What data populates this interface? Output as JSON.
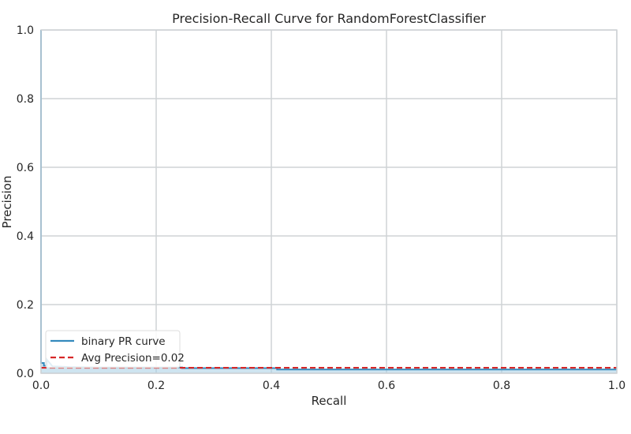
{
  "chart_data": {
    "type": "line",
    "title": "Precision-Recall Curve for RandomForestClassifier",
    "xlabel": "Recall",
    "ylabel": "Precision",
    "xlim": [
      0,
      1
    ],
    "ylim": [
      0,
      1
    ],
    "xticks": [
      "0.0",
      "0.2",
      "0.4",
      "0.6",
      "0.8",
      "1.0"
    ],
    "yticks": [
      "0.0",
      "0.2",
      "0.4",
      "0.6",
      "0.8",
      "1.0"
    ],
    "grid": true,
    "legend_position": "lower-left",
    "series": [
      {
        "name": "binary PR curve",
        "color": "#348abd",
        "fill": "#a6cee3",
        "x": [
          0.0,
          0.0,
          0.005,
          0.005,
          0.01,
          0.01,
          0.02,
          0.05,
          0.1,
          0.15,
          0.2,
          0.245,
          0.245,
          0.3,
          0.35,
          0.41,
          0.41,
          0.5,
          0.6,
          0.7,
          0.8,
          0.9,
          1.0
        ],
        "y": [
          1.0,
          0.03,
          0.03,
          0.022,
          0.022,
          0.04,
          0.02,
          0.018,
          0.017,
          0.017,
          0.017,
          0.017,
          0.015,
          0.015,
          0.015,
          0.015,
          0.011,
          0.011,
          0.011,
          0.011,
          0.011,
          0.011,
          0.011
        ]
      },
      {
        "name": "Avg Precision=0.02",
        "color": "#d62728",
        "style": "dashed",
        "value": 0.016
      }
    ]
  }
}
